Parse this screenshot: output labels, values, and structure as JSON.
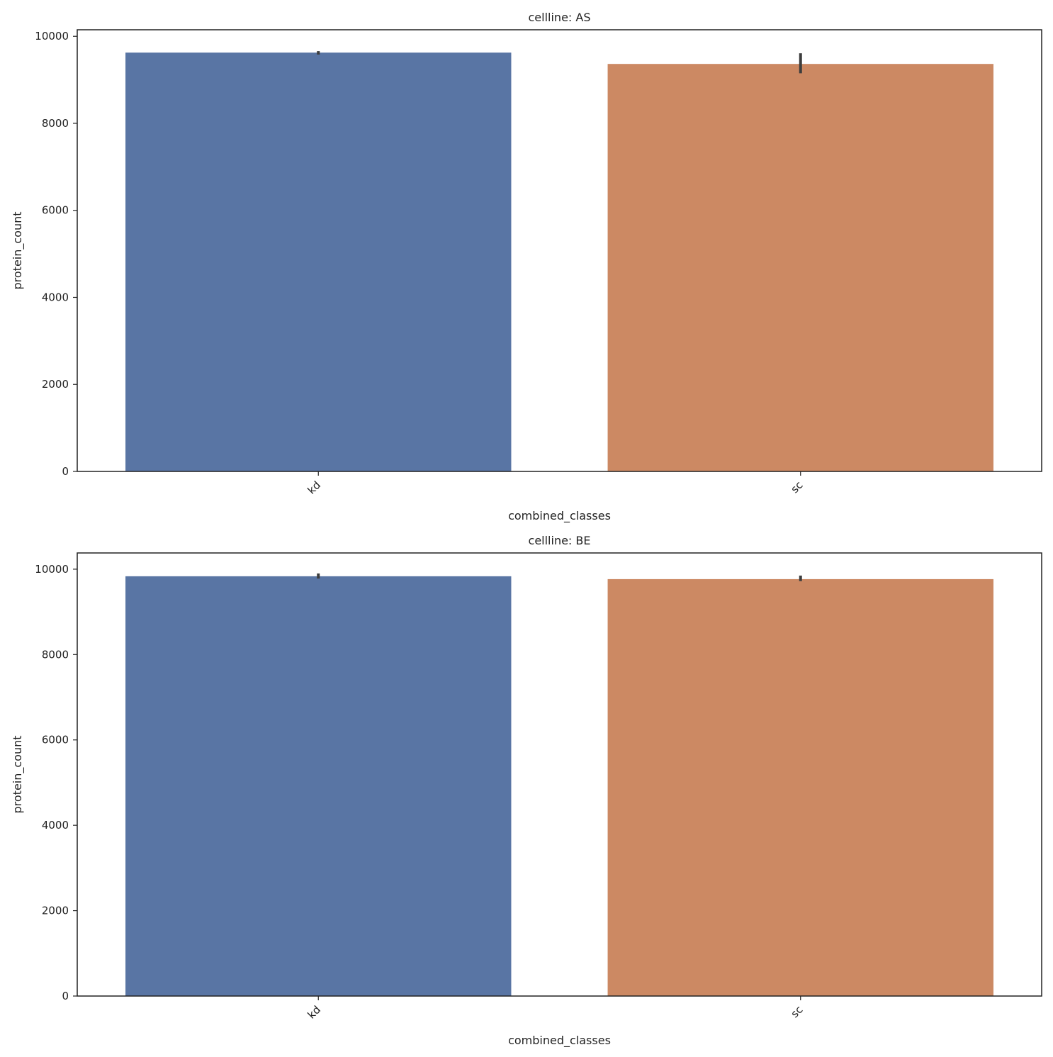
{
  "chart_data": [
    {
      "type": "bar",
      "title": "cellline: AS",
      "xlabel": "combined_classes",
      "ylabel": "protein_count",
      "categories": [
        "kd",
        "sc"
      ],
      "values": [
        9625,
        9365
      ],
      "colors": [
        "#5975a4",
        "#cc8963"
      ],
      "ci_low": [
        9580,
        9150
      ],
      "ci_high": [
        9660,
        9610
      ],
      "ylim": [
        0,
        10150
      ],
      "yticks": [
        0,
        2000,
        4000,
        6000,
        8000,
        10000
      ]
    },
    {
      "type": "bar",
      "title": "cellline: BE",
      "xlabel": "combined_classes",
      "ylabel": "protein_count",
      "categories": [
        "kd",
        "sc"
      ],
      "values": [
        9834,
        9767
      ],
      "colors": [
        "#5975a4",
        "#cc8963"
      ],
      "ci_low": [
        9780,
        9720
      ],
      "ci_high": [
        9900,
        9850
      ],
      "ylim": [
        0,
        10380
      ],
      "yticks": [
        0,
        2000,
        4000,
        6000,
        8000,
        10000
      ]
    }
  ]
}
